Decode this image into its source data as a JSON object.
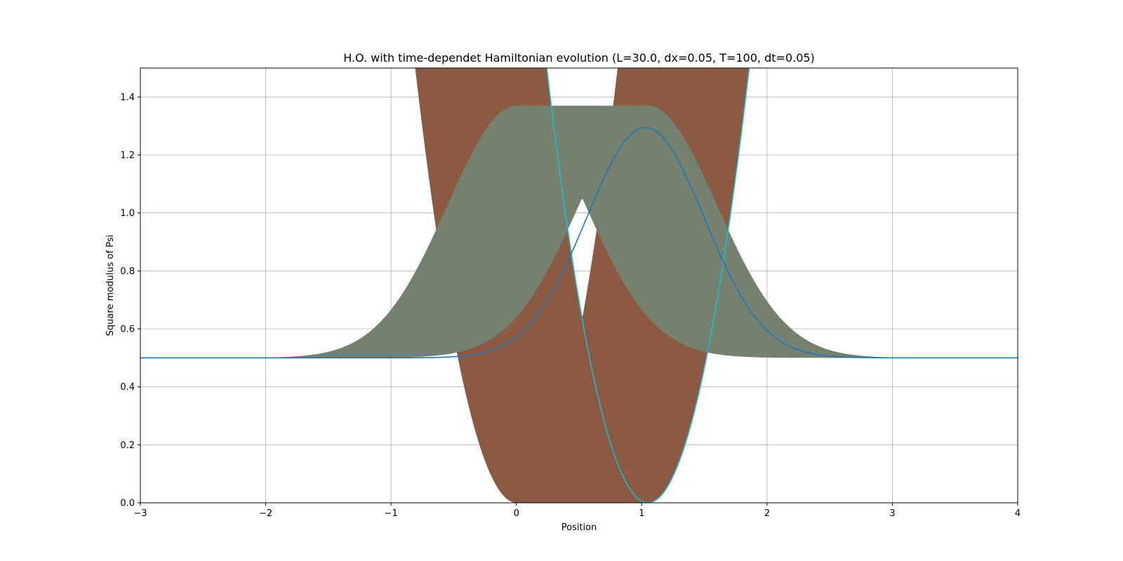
{
  "chart_data": {
    "type": "line",
    "title": "H.O. with time-dependet Hamiltonian evolution (L=30.0, dx=0.05, T=100, dt=0.05)",
    "xlabel": "Position",
    "ylabel": "Square modulus of Psi",
    "xlim": [
      -3,
      4
    ],
    "ylim": [
      0,
      1.5
    ],
    "xticks": [
      -3,
      -2,
      -1,
      0,
      1,
      2,
      3,
      4
    ],
    "xtick_labels": [
      "−3",
      "−2",
      "−1",
      "0",
      "1",
      "2",
      "3",
      "4"
    ],
    "yticks": [
      0.0,
      0.2,
      0.4,
      0.6,
      0.8,
      1.0,
      1.2,
      1.4
    ],
    "ytick_labels": [
      "0.0",
      "0.2",
      "0.4",
      "0.6",
      "0.8",
      "1.0",
      "1.2",
      "1.4"
    ],
    "grid": true,
    "potential_band": {
      "color": "#8c5a43",
      "min_center_x": 0.0,
      "max_center_x": 1.05,
      "curvature": 2.3
    },
    "psi_band": {
      "color": "#75806f",
      "baseline": 0.5,
      "peak_start_x": 0.0,
      "peak_end_x": 1.05,
      "peak_height": 0.87,
      "width": 0.55
    },
    "final_potential": {
      "color": "#17becf",
      "center_x": 1.05,
      "curvature": 2.3
    },
    "final_psi": {
      "color": "#1f77b4",
      "center_x": 1.03,
      "baseline": 0.5,
      "peak_height": 0.795,
      "width": 0.47
    },
    "colors": {
      "grid": "#b0b0b0",
      "axis": "#000000"
    }
  }
}
